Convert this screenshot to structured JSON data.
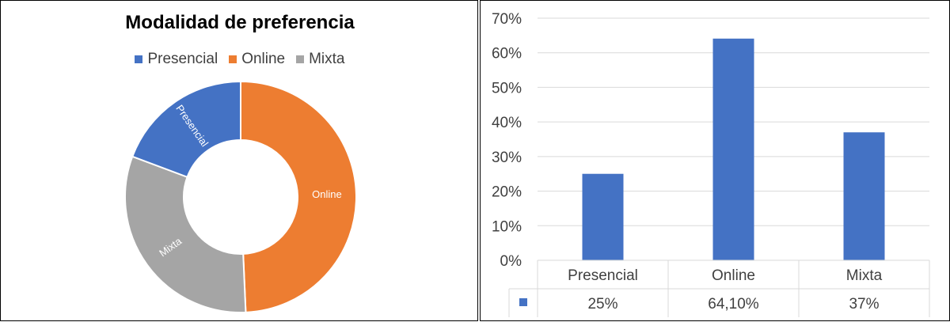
{
  "chart_data": [
    {
      "type": "pie",
      "variant": "donut",
      "title": "Modalidad de preferencia",
      "categories": [
        "Presencial",
        "Online",
        "Mixta"
      ],
      "values": [
        19.3,
        49.3,
        31.4
      ],
      "colors": [
        "#4472C4",
        "#ED7D31",
        "#A5A5A5"
      ],
      "slice_labels": [
        "Presencial",
        "Online",
        "Mixta"
      ],
      "legend": "top"
    },
    {
      "type": "bar",
      "categories": [
        "Presencial",
        "Online",
        "Mixta"
      ],
      "values": [
        25,
        64.1,
        37
      ],
      "value_labels": [
        "25%",
        "64,10%",
        "37%"
      ],
      "yticks": [
        "0%",
        "10%",
        "20%",
        "30%",
        "40%",
        "50%",
        "60%",
        "70%"
      ],
      "ylim": [
        0,
        70
      ],
      "color": "#4472C4",
      "grid": true,
      "data_table": true
    }
  ]
}
